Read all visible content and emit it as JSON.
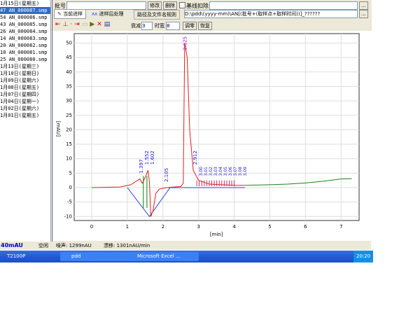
{
  "left_list": {
    "items": [
      "1月15日(星期五)",
      "47 AN_000087.smp",
      "54 AN_000086.smp",
      "43 AN_000085.smp",
      "26 AN_000084.smp",
      "14 AN_000083.smp",
      "20 AN_000082.smp",
      "10 AN_000081.smp",
      "25 AN_000080.smp",
      "1月13日(星期三)",
      "1月10日(星期日)",
      "1月09日(星期六)",
      "1月08日(星期五)",
      "1月07日(星期四)",
      "1月04日(星期一)",
      "1月02日(星期六)",
      "1月01日(星期五)"
    ],
    "selected": 1
  },
  "top": {
    "batch_label": "批号",
    "batch_value": "",
    "modify": "修改",
    "delete": "删除",
    "baseline_deduct": "基线扣除",
    "more": "..."
  },
  "tabs": [
    {
      "label": "当前进样"
    },
    {
      "label": "进样后处理"
    },
    {
      "label": "路径及文件名规则"
    }
  ],
  "path_value": "D:\\pdd\\(yyyy-mm)\\AN[(批号+(取样点+取样时间))]_??????",
  "toolbar": {
    "attenuation_label": "衰减",
    "attenuation_value": "3",
    "time_width_label": "时宽",
    "time_width_value": "8",
    "zero": "调零",
    "restore": "恢复"
  },
  "status": {
    "signal": "40mAU",
    "state": "空闲",
    "noise": "噪声: 1299nAU",
    "drift": "漂移: 1301nAU/min"
  },
  "taskbar": {
    "items": [
      "T2100P",
      "pdd",
      "Microsoft Excel ..."
    ],
    "clock": "20:20"
  },
  "chart_data": {
    "type": "line",
    "xlabel": "[min]",
    "ylabel": "[mAU]",
    "xlim": [
      -0.5,
      7.5
    ],
    "ylim": [
      -11,
      52
    ],
    "xticks": [
      0,
      1,
      2,
      3,
      4,
      5,
      6,
      7
    ],
    "yticks": [
      -10,
      -5,
      0,
      5,
      10,
      15,
      20,
      25,
      30,
      35,
      40,
      45,
      50
    ],
    "grid": true,
    "colors": {
      "signal": "#e02020",
      "tail": "#208020",
      "baseline": "#2040e0",
      "label": "#2020c0"
    },
    "signal": [
      [
        0,
        0
      ],
      [
        0.8,
        0.2
      ],
      [
        1.1,
        1
      ],
      [
        1.35,
        3
      ],
      [
        1.42,
        1.5
      ],
      [
        1.52,
        4
      ],
      [
        1.58,
        6
      ],
      [
        1.62,
        2
      ],
      [
        1.66,
        -10
      ],
      [
        1.72,
        -8
      ],
      [
        1.8,
        -2
      ],
      [
        1.9,
        -0.5
      ],
      [
        2.1,
        0
      ],
      [
        2.5,
        0.4
      ],
      [
        2.57,
        1.5
      ],
      [
        2.61,
        50
      ],
      [
        2.68,
        45
      ],
      [
        2.75,
        20
      ],
      [
        2.85,
        6
      ],
      [
        3.0,
        2.5
      ],
      [
        3.3,
        1.2
      ],
      [
        4.0,
        0.8
      ],
      [
        4.3,
        0.8
      ]
    ],
    "tail": [
      [
        4.3,
        0.8
      ],
      [
        5,
        1
      ],
      [
        5.5,
        1.2
      ],
      [
        6,
        1.6
      ],
      [
        6.5,
        2.2
      ],
      [
        7,
        3
      ],
      [
        7.3,
        3.1
      ]
    ],
    "peaks": [
      "1.397",
      "1.552",
      "1.602",
      "2.105",
      "2.625",
      "2.912"
    ],
    "peak_times": [
      1.397,
      1.552,
      1.602,
      2.105,
      2.625,
      2.912
    ]
  }
}
